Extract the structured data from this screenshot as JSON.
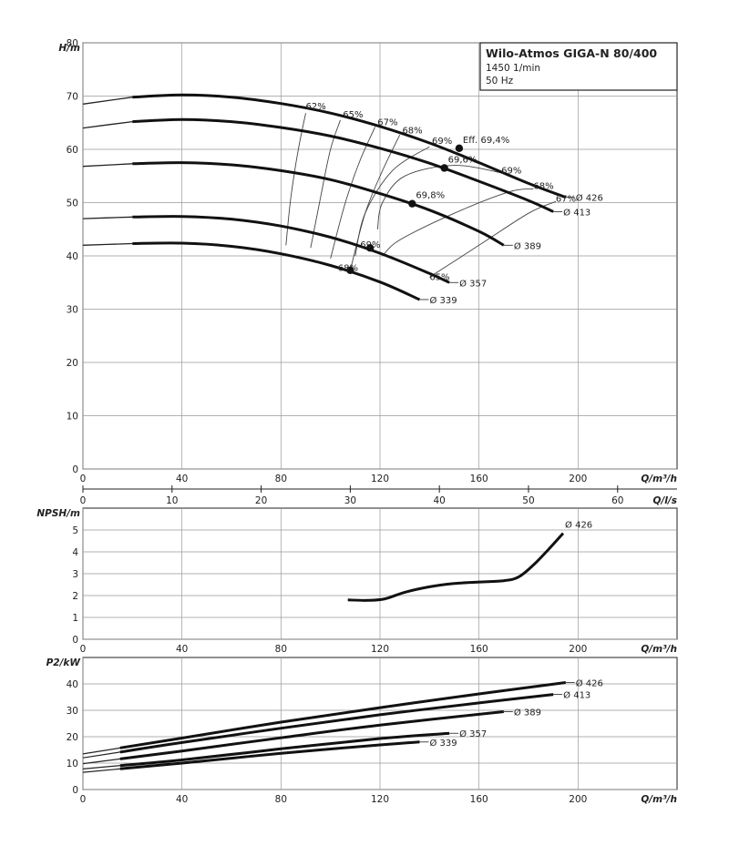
{
  "title": {
    "name": "Wilo-Atmos GIGA-N 80/400",
    "speed": "1450 1/min",
    "frequency": "50 Hz"
  },
  "chart_data": [
    {
      "type": "line",
      "id": "head",
      "ylabel": "H/m",
      "xlabel": "Q/m³/h",
      "xlim": [
        0,
        240
      ],
      "ylim": [
        0,
        80
      ],
      "xticks": [
        "0",
        "40",
        "80",
        "120",
        "160",
        "200"
      ],
      "yticks": [
        "0",
        "10",
        "20",
        "30",
        "40",
        "50",
        "60",
        "70",
        "80"
      ],
      "grid": true,
      "series": [
        {
          "name": "Ø 426",
          "label": "Ø 426",
          "x": [
            0,
            20,
            40,
            60,
            80,
            100,
            120,
            140,
            160,
            180,
            195
          ],
          "y": [
            68.5,
            69.8,
            70.2,
            69.8,
            68.6,
            66.8,
            64.3,
            61.2,
            57.5,
            53.6,
            51
          ]
        },
        {
          "name": "Ø 413",
          "label": "Ø 413",
          "x": [
            0,
            20,
            40,
            60,
            80,
            100,
            120,
            140,
            160,
            180,
            190
          ],
          "y": [
            64,
            65.2,
            65.6,
            65.2,
            64.1,
            62.5,
            60.2,
            57.4,
            54,
            50.4,
            48.3
          ]
        },
        {
          "name": "Ø 389",
          "label": "Ø 389",
          "x": [
            0,
            20,
            40,
            60,
            80,
            100,
            120,
            140,
            160,
            170
          ],
          "y": [
            56.8,
            57.3,
            57.5,
            57.1,
            56,
            54.3,
            51.7,
            48.6,
            44.6,
            42
          ]
        },
        {
          "name": "Ø 357",
          "label": "Ø 357",
          "x": [
            0,
            20,
            40,
            60,
            80,
            100,
            120,
            140,
            148
          ],
          "y": [
            47,
            47.3,
            47.4,
            46.9,
            45.6,
            43.5,
            40.5,
            36.7,
            35
          ]
        },
        {
          "name": "Ø 339",
          "label": "Ø 339",
          "x": [
            0,
            20,
            40,
            60,
            80,
            100,
            120,
            136
          ],
          "y": [
            42,
            42.3,
            42.4,
            41.8,
            40.4,
            38.2,
            35.1,
            31.8
          ]
        }
      ],
      "bep_points": [
        {
          "x": 152,
          "y": 60.2,
          "label": "Eff. 69,4%"
        },
        {
          "x": 146,
          "y": 56.5,
          "label": "69,6%"
        },
        {
          "x": 133,
          "y": 49.8,
          "label": "69,8%"
        },
        {
          "x": 116,
          "y": 41.5,
          "label": ""
        },
        {
          "x": 108,
          "y": 37.3,
          "label": ""
        }
      ],
      "efficiency_labels": [
        {
          "text": "62%",
          "x": 90,
          "y": 67.5
        },
        {
          "text": "65%",
          "x": 105,
          "y": 66
        },
        {
          "text": "67%",
          "x": 119,
          "y": 64.5
        },
        {
          "text": "68%",
          "x": 129,
          "y": 63
        },
        {
          "text": "69%",
          "x": 141,
          "y": 61
        },
        {
          "text": "69%",
          "x": 169,
          "y": 55.5
        },
        {
          "text": "68%",
          "x": 182,
          "y": 52.6
        },
        {
          "text": "67%",
          "x": 191,
          "y": 50.2
        },
        {
          "text": "69%",
          "x": 112,
          "y": 41.5
        },
        {
          "text": "68%",
          "x": 103,
          "y": 37.2
        },
        {
          "text": "65%",
          "x": 140,
          "y": 35.5
        }
      ]
    },
    {
      "type": "line",
      "id": "flow-ls",
      "xlabel": "Q/l/s",
      "xlim": [
        0,
        66.67
      ],
      "xticks": [
        "0",
        "10",
        "20",
        "30",
        "40",
        "50",
        "60"
      ]
    },
    {
      "type": "line",
      "id": "npsh",
      "ylabel": "NPSH/m",
      "xlabel": "Q/m³/h",
      "xlim": [
        0,
        240
      ],
      "ylim": [
        0,
        6
      ],
      "xticks": [
        "0",
        "40",
        "80",
        "120",
        "160",
        "200"
      ],
      "yticks": [
        "0",
        "1",
        "2",
        "3",
        "4",
        "5"
      ],
      "grid": true,
      "series": [
        {
          "name": "Ø 426",
          "label": "Ø 426",
          "x": [
            107,
            115,
            122,
            130,
            140,
            150,
            160,
            170,
            176,
            182,
            188,
            194
          ],
          "y": [
            1.8,
            1.78,
            1.85,
            2.15,
            2.4,
            2.55,
            2.62,
            2.68,
            2.85,
            3.4,
            4.1,
            4.85
          ]
        }
      ]
    },
    {
      "type": "line",
      "id": "power",
      "ylabel": "P2/kW",
      "xlabel": "Q/m³/h",
      "xlim": [
        0,
        240
      ],
      "ylim": [
        0,
        50
      ],
      "xticks": [
        "0",
        "40",
        "80",
        "120",
        "160",
        "200"
      ],
      "yticks": [
        "0",
        "10",
        "20",
        "30",
        "40"
      ],
      "grid": true,
      "series": [
        {
          "name": "Ø 426",
          "label": "Ø 426",
          "x": [
            0,
            40,
            80,
            120,
            160,
            195
          ],
          "y": [
            13.5,
            19.5,
            25.5,
            31,
            36.2,
            40.5
          ]
        },
        {
          "name": "Ø 413",
          "label": "Ø 413",
          "x": [
            0,
            40,
            80,
            120,
            160,
            190
          ],
          "y": [
            12,
            17.8,
            23.2,
            28.3,
            32.8,
            36
          ]
        },
        {
          "name": "Ø 389",
          "label": "Ø 389",
          "x": [
            0,
            40,
            80,
            120,
            170
          ],
          "y": [
            9.8,
            14.6,
            19.6,
            24.4,
            29.5
          ]
        },
        {
          "name": "Ø 357",
          "label": "Ø 357",
          "x": [
            0,
            40,
            80,
            120,
            148
          ],
          "y": [
            7.8,
            11.2,
            15.4,
            19.3,
            21.3
          ]
        },
        {
          "name": "Ø 339",
          "label": "Ø 339",
          "x": [
            0,
            40,
            80,
            120,
            136
          ],
          "y": [
            6.5,
            10,
            13.7,
            16.9,
            18
          ]
        }
      ]
    }
  ]
}
